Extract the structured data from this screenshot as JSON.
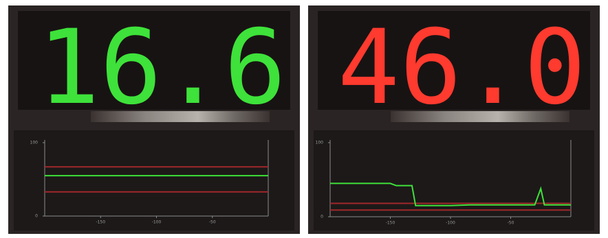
{
  "panels": [
    {
      "display": "16.6",
      "display_color": "#3ee23a",
      "chart": {
        "type": "line",
        "xlim": [
          -200,
          0
        ],
        "ylim": [
          0,
          100
        ],
        "xticks": [
          -150,
          -100,
          -50
        ],
        "yticks": [
          0,
          100
        ],
        "series": [
          {
            "color": "#3ee23a",
            "x": [
              -200,
              0
            ],
            "values": [
              55,
              55
            ]
          },
          {
            "color": "#a0282a",
            "x": [
              -200,
              0
            ],
            "values": [
              67,
              67
            ]
          },
          {
            "color": "#a0282a",
            "x": [
              -200,
              0
            ],
            "values": [
              33,
              33
            ]
          }
        ]
      }
    },
    {
      "display": "46.0",
      "display_color": "#ff3a2e",
      "chart": {
        "type": "line",
        "xlim": [
          -200,
          0
        ],
        "ylim": [
          0,
          100
        ],
        "xticks": [
          -150,
          -100,
          -50
        ],
        "yticks": [
          0,
          100
        ],
        "series": [
          {
            "color": "#3ee23a",
            "x": [
              -200,
              -150,
              -145,
              -132,
              -129,
              -100,
              -84,
              -30,
              -25,
              -22,
              -19,
              0
            ],
            "values": [
              45,
              45,
              42,
              42,
              15,
              15,
              16,
              16,
              38,
              16,
              16,
              16
            ]
          },
          {
            "color": "#a0282a",
            "x": [
              -200,
              0
            ],
            "values": [
              18,
              18
            ]
          },
          {
            "color": "#a0282a",
            "x": [
              -200,
              0
            ],
            "values": [
              9,
              9
            ]
          }
        ]
      }
    }
  ]
}
